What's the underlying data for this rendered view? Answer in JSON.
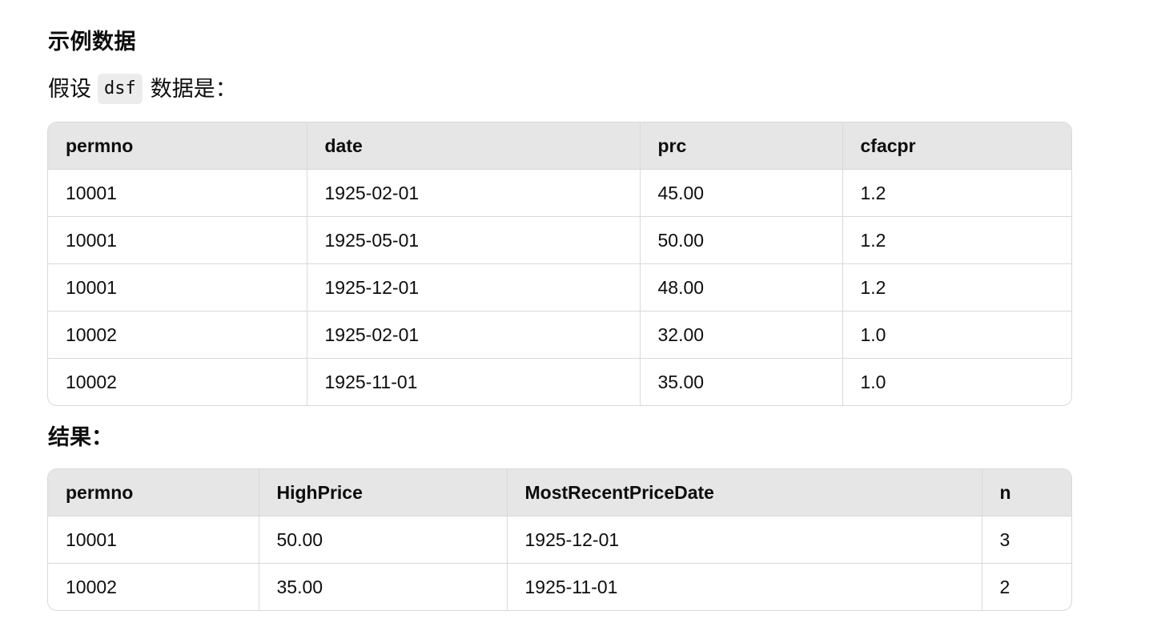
{
  "section_title": "示例数据",
  "intro": {
    "prefix": "假设",
    "code": "dsf",
    "suffix": "数据是："
  },
  "input_table": {
    "headers": [
      "permno",
      "date",
      "prc",
      "cfacpr"
    ],
    "rows": [
      [
        "10001",
        "1925-02-01",
        "45.00",
        "1.2"
      ],
      [
        "10001",
        "1925-05-01",
        "50.00",
        "1.2"
      ],
      [
        "10001",
        "1925-12-01",
        "48.00",
        "1.2"
      ],
      [
        "10002",
        "1925-02-01",
        "32.00",
        "1.0"
      ],
      [
        "10002",
        "1925-11-01",
        "35.00",
        "1.0"
      ]
    ]
  },
  "result_label": "结果：",
  "result_table": {
    "headers": [
      "permno",
      "HighPrice",
      "MostRecentPriceDate",
      "n"
    ],
    "rows": [
      [
        "10001",
        "50.00",
        "1925-12-01",
        "3"
      ],
      [
        "10002",
        "35.00",
        "1925-11-01",
        "2"
      ]
    ]
  }
}
